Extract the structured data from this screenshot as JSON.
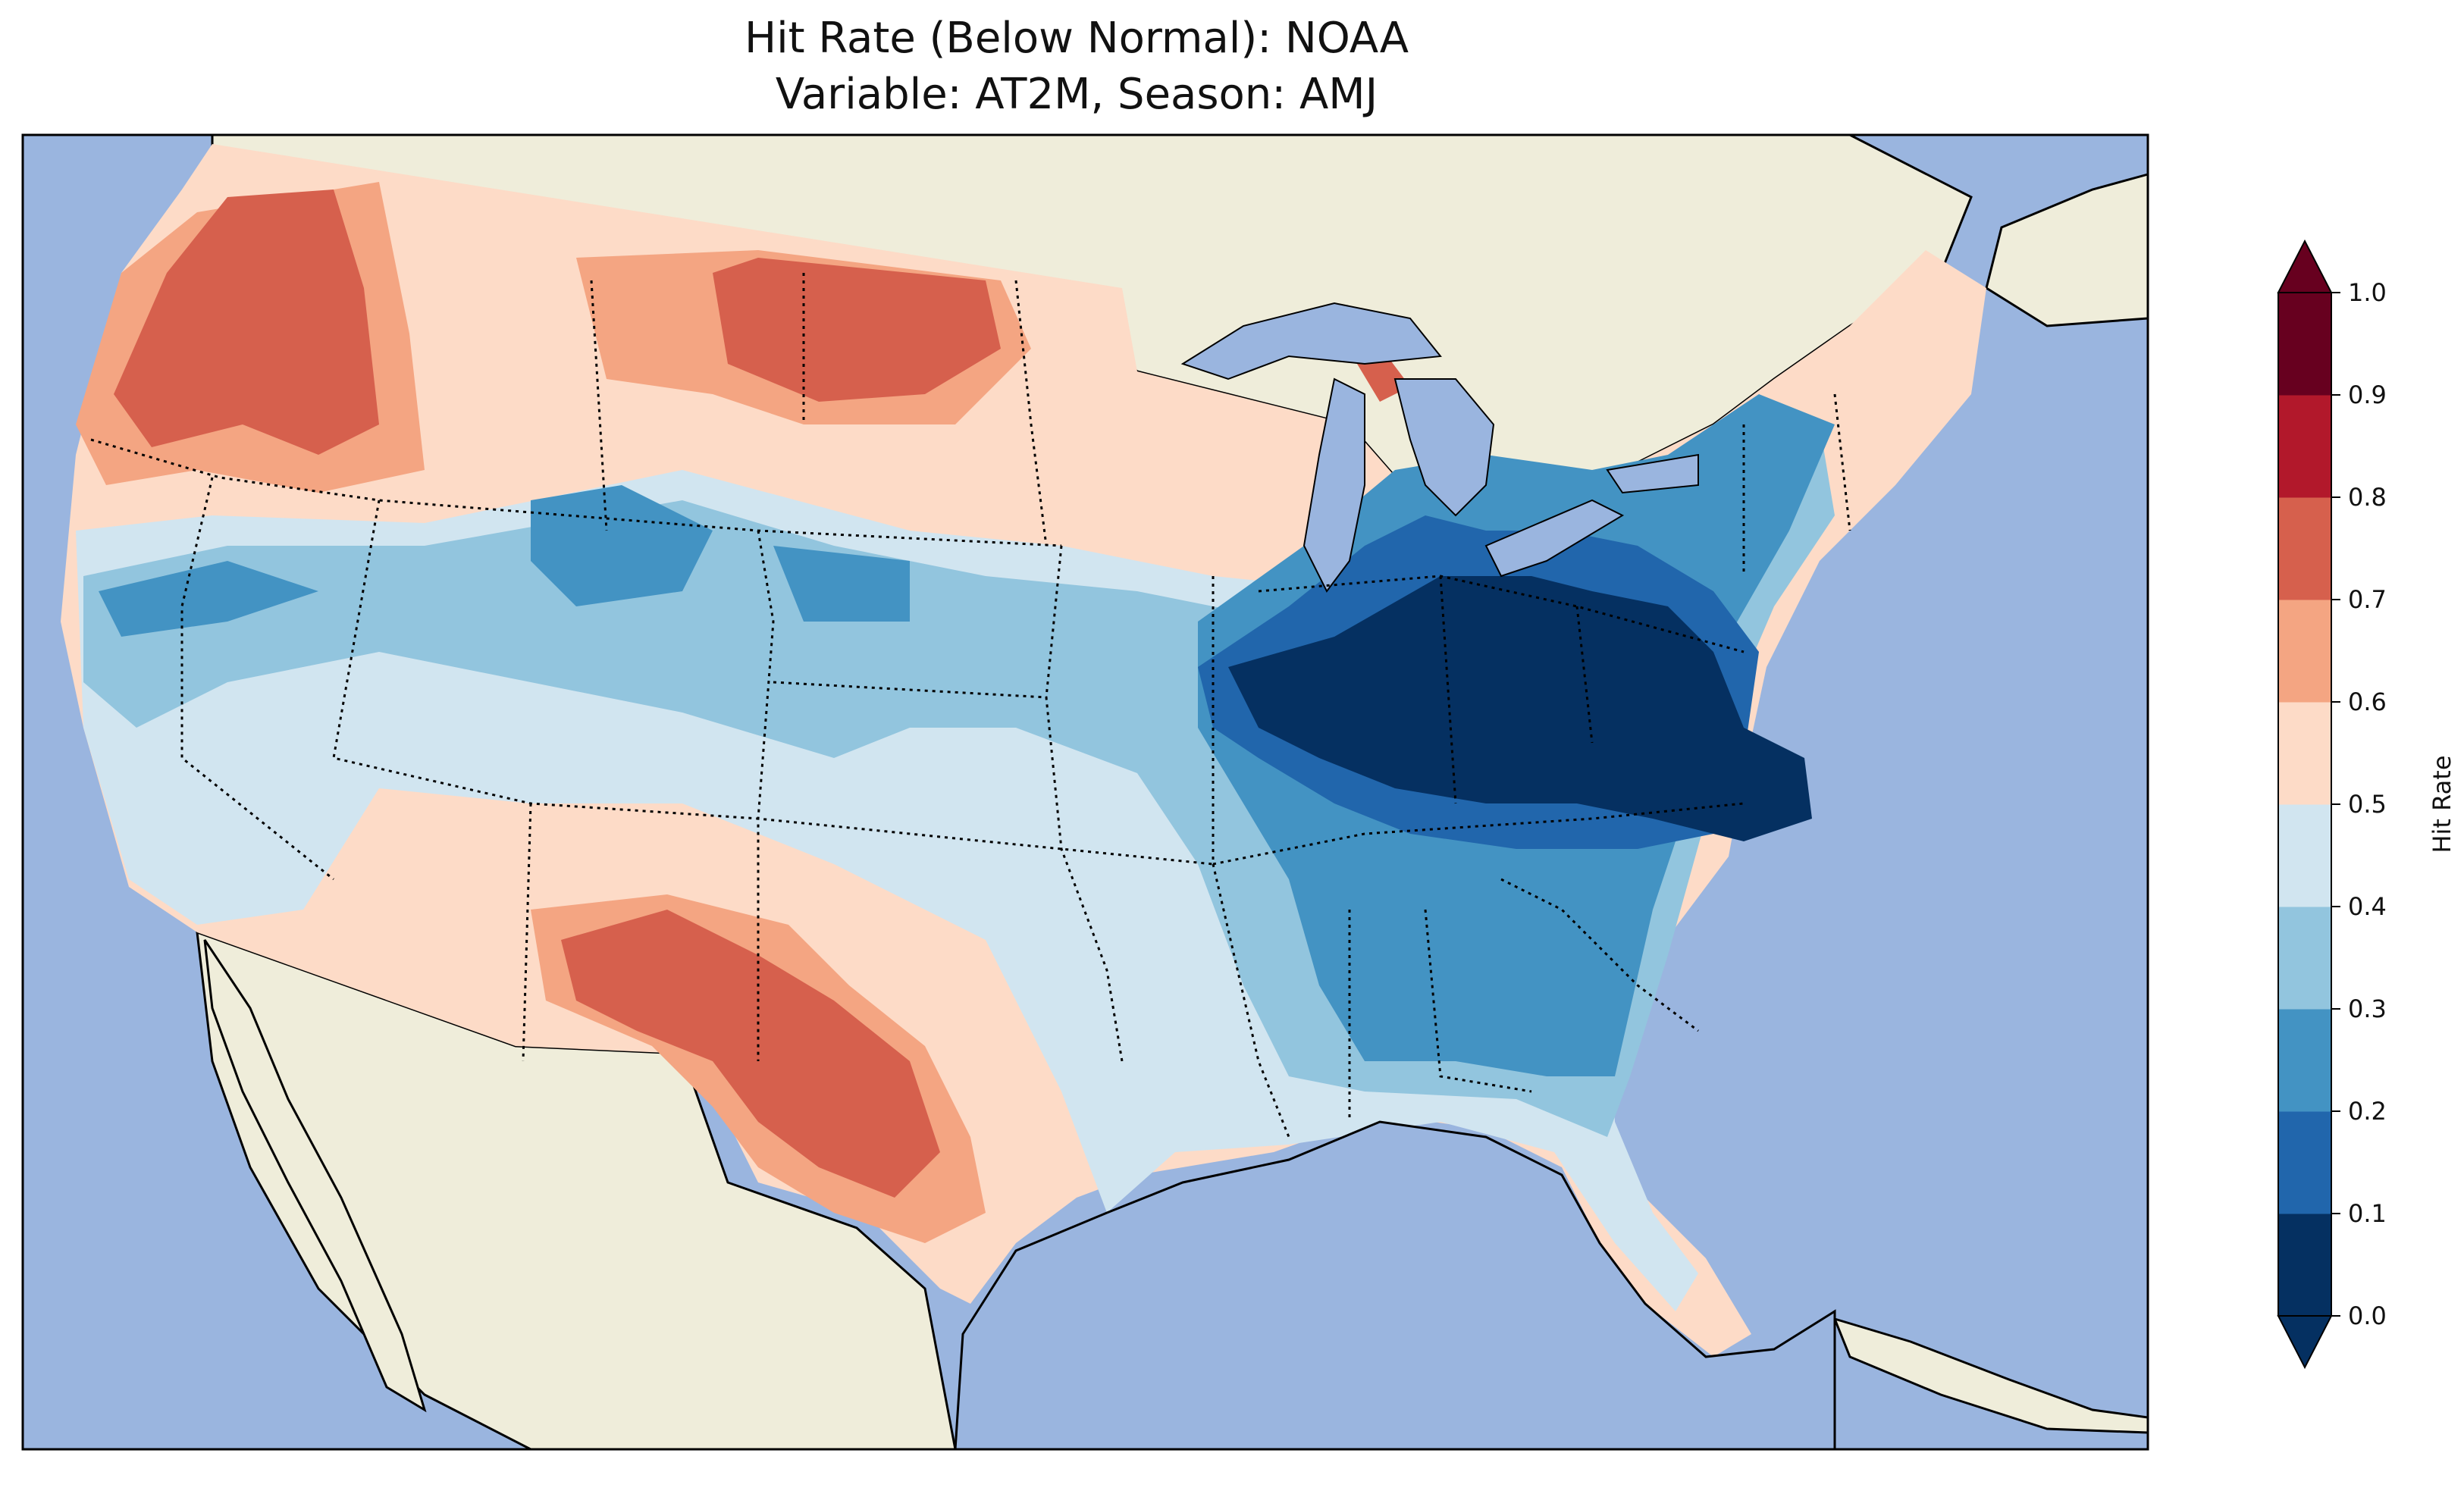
{
  "title": {
    "line1": "Hit Rate (Below Normal): NOAA",
    "line2": "Variable: AT2M, Season: AMJ"
  },
  "colorbar": {
    "label": "Hit Rate",
    "ticks": [
      "0.0",
      "0.1",
      "0.2",
      "0.3",
      "0.4",
      "0.5",
      "0.6",
      "0.7",
      "0.8",
      "0.9",
      "1.0"
    ],
    "colors": [
      "#053061",
      "#2166ac",
      "#4393c3",
      "#92c5de",
      "#d1e5f0",
      "#fddbc7",
      "#f4a582",
      "#d6604d",
      "#b2182b",
      "#67001f"
    ],
    "extend": "both"
  },
  "map": {
    "ocean_color": "#9ab5df",
    "land_color": "#efedda"
  }
}
